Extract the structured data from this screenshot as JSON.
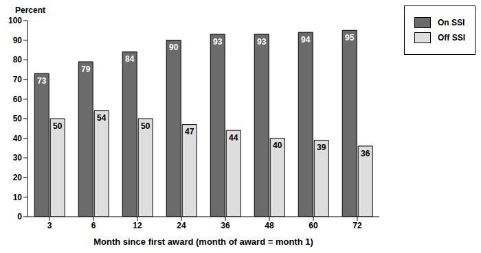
{
  "chart_data": {
    "type": "bar",
    "ylabel": "Percent",
    "xlabel": "Month since first award (month of award = month 1)",
    "categories": [
      "3",
      "6",
      "12",
      "24",
      "36",
      "48",
      "60",
      "72"
    ],
    "series": [
      {
        "name": "On SSI",
        "color": "#6b6b6b",
        "values": [
          73,
          79,
          84,
          90,
          93,
          93,
          94,
          95
        ]
      },
      {
        "name": "Off SSI",
        "color": "#dedede",
        "values": [
          50,
          54,
          50,
          47,
          44,
          40,
          39,
          36
        ]
      }
    ],
    "ylim": [
      0,
      100
    ],
    "yticks": [
      0,
      10,
      20,
      30,
      40,
      50,
      60,
      70,
      80,
      90,
      100
    ],
    "grid": false,
    "legend": "upper right",
    "data_labels": true
  }
}
